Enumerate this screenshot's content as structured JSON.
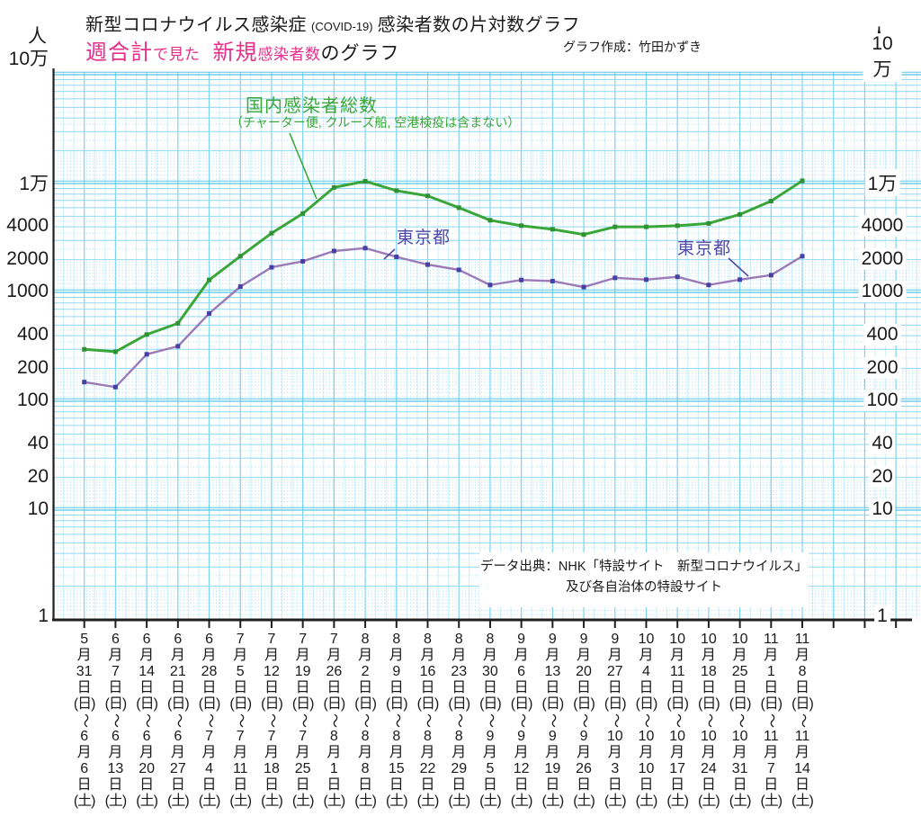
{
  "header": {
    "title1_part1": "新型コロナウイルス感染症",
    "title1_part2": "(COVID-19)",
    "title1_part3": "感染者数の片対数グラフ",
    "title2_part1": "週合計",
    "title2_part2": "で見た",
    "title2_part3": "新規",
    "title2_part4": "感染者数",
    "title2_part5": "のグラフ",
    "credit": "グラフ作成：竹田かずき"
  },
  "annotations": {
    "national_label": "国内感染者総数",
    "national_note": "（チャーター便, クルーズ船, 空港検疫は含まない）",
    "tokyo_label_1": "東京都",
    "tokyo_label_2": "東京都"
  },
  "source_box": {
    "line1": "データ出典：NHK「特設サイト　新型コロナウイルス」",
    "line2": "及び各自治体の特設サイト"
  },
  "y_axis": {
    "unit_left": "人",
    "unit_right": "人",
    "labels": [
      {
        "text": "10万",
        "value": 100000
      },
      {
        "text": "1万",
        "value": 10000
      },
      {
        "text": "4000",
        "value": 4000
      },
      {
        "text": "2000",
        "value": 2000
      },
      {
        "text": "1000",
        "value": 1000
      },
      {
        "text": "400",
        "value": 400
      },
      {
        "text": "200",
        "value": 200
      },
      {
        "text": "100",
        "value": 100
      },
      {
        "text": "40",
        "value": 40
      },
      {
        "text": "20",
        "value": 20
      },
      {
        "text": "10",
        "value": 10
      },
      {
        "text": "1",
        "value": 1
      }
    ]
  },
  "colors": {
    "title_accent": "#e62e8a",
    "national_green": "#3aa63a",
    "national_marker": "#2f9132",
    "tokyo_line": "#9c7ab8",
    "tokyo_marker": "#4540a3",
    "tokyo_text": "#5149a5",
    "grid_major": "#55c5ea",
    "grid_solid": "#90d8f2",
    "grid_dotted": "#9edcf4",
    "grid_vmajor": "#7dd2ef",
    "grid_vminor": "#cdeefb",
    "axis_black": "#1f1f1f"
  },
  "chart_data": {
    "type": "line",
    "yscale": "log",
    "ylim": [
      1,
      100000
    ],
    "grid": "log-paper",
    "legend_position": "annotated-on-chart",
    "x_categories": [
      "5月31日(日)〜6月6日(土)",
      "6月7日(日)〜6月13日(土)",
      "6月14日(日)〜6月20日(土)",
      "6月21日(日)〜6月27日(土)",
      "6月28日(日)〜7月4日(土)",
      "7月5日(日)〜7月11日(土)",
      "7月12日(日)〜7月18日(土)",
      "7月19日(日)〜7月25日(土)",
      "7月26日(日)〜8月1日(土)",
      "8月2日(日)〜8月8日(土)",
      "8月9日(日)〜8月15日(土)",
      "8月16日(日)〜8月22日(土)",
      "8月23日(日)〜8月29日(土)",
      "8月30日(日)〜9月5日(土)",
      "9月6日(日)〜9月12日(土)",
      "9月13日(日)〜9月19日(土)",
      "9月20日(日)〜9月26日(土)",
      "9月27日(日)〜10月3日(土)",
      "10月4日(日)〜10月10日(土)",
      "10月11日(日)〜10月17日(土)",
      "10月18日(日)〜10月24日(土)",
      "10月25日(日)〜10月31日(土)",
      "11月1日(日)〜11月7日(土)",
      "11月8日(日)〜11月14日(土)"
    ],
    "series": [
      {
        "name": "国内感染者総数",
        "note": "チャーター便, クルーズ船, 空港検疫は含まない",
        "color": "#3aa63a",
        "values": [
          300,
          285,
          410,
          520,
          1300,
          2150,
          3500,
          5300,
          9200,
          10500,
          8600,
          7700,
          6000,
          4600,
          4100,
          3800,
          3400,
          4000,
          4000,
          4100,
          4300,
          5200,
          6900,
          10600
        ]
      },
      {
        "name": "東京都",
        "color": "#9c7ab8",
        "values": [
          150,
          135,
          270,
          320,
          640,
          1130,
          1700,
          1930,
          2400,
          2550,
          2120,
          1800,
          1610,
          1170,
          1300,
          1270,
          1120,
          1360,
          1310,
          1390,
          1170,
          1310,
          1440,
          2150
        ]
      }
    ]
  }
}
